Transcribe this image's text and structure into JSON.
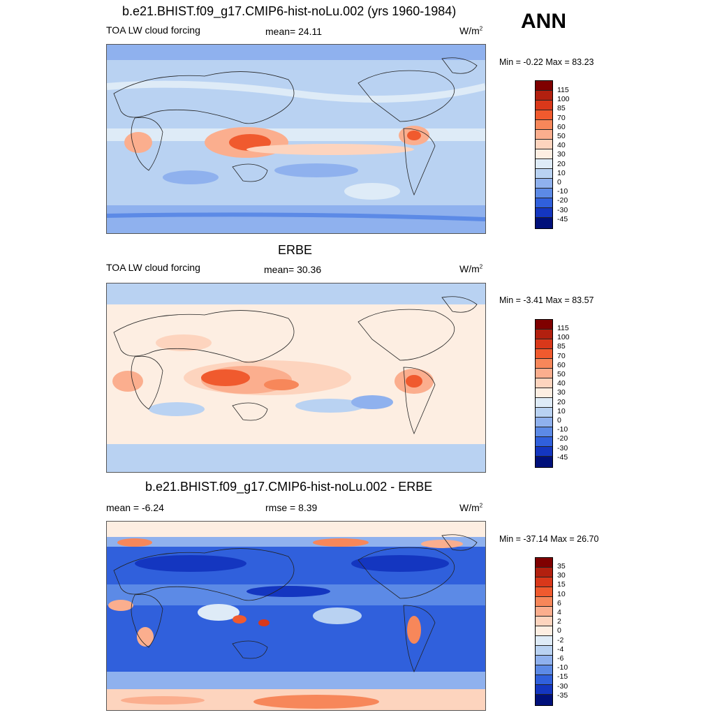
{
  "season": "ANN",
  "units_base": "W/m",
  "units_sup": "2",
  "panels": [
    {
      "title": "b.e21.BHIST.f09_g17.CMIP6-hist-noLu.002 (yrs 1960-1984)",
      "left_label": "TOA LW cloud forcing",
      "center_label": "mean=  24.11",
      "minmax": "Min =  -0.22 Max =  83.23",
      "levels": [
        "115",
        "100",
        "85",
        "70",
        "60",
        "50",
        "40",
        "30",
        "20",
        "10",
        "0",
        "-10",
        "-20",
        "-30",
        "-45"
      ],
      "colors": [
        "#7f0000",
        "#b2200f",
        "#d9381a",
        "#f05a2e",
        "#f7875a",
        "#fbae8e",
        "#fdd4be",
        "#fdeee2",
        "#deebf7",
        "#b9d2f2",
        "#8fb1ee",
        "#5c8ae6",
        "#3060dc",
        "#1436c0",
        "#00107a"
      ]
    },
    {
      "title": "ERBE",
      "left_label": "TOA LW cloud forcing",
      "center_label": "mean=  30.36",
      "minmax": "Min =  -3.41 Max =  83.57",
      "levels": [
        "115",
        "100",
        "85",
        "70",
        "60",
        "50",
        "40",
        "30",
        "20",
        "10",
        "0",
        "-10",
        "-20",
        "-30",
        "-45"
      ],
      "colors": [
        "#7f0000",
        "#b2200f",
        "#d9381a",
        "#f05a2e",
        "#f7875a",
        "#fbae8e",
        "#fdd4be",
        "#fdeee2",
        "#deebf7",
        "#b9d2f2",
        "#8fb1ee",
        "#5c8ae6",
        "#3060dc",
        "#1436c0",
        "#00107a"
      ]
    },
    {
      "title": "b.e21.BHIST.f09_g17.CMIP6-hist-noLu.002 - ERBE",
      "left_label": "mean =  -6.24",
      "center_label": "rmse =   8.39",
      "minmax": "Min = -37.14 Max =  26.70",
      "levels": [
        "35",
        "30",
        "15",
        "10",
        "6",
        "4",
        "2",
        "0",
        "-2",
        "-4",
        "-6",
        "-10",
        "-15",
        "-30",
        "-35"
      ],
      "colors": [
        "#7f0000",
        "#b2200f",
        "#d9381a",
        "#f05a2e",
        "#f7875a",
        "#fbae8e",
        "#fdd4be",
        "#fdeee2",
        "#deebf7",
        "#b9d2f2",
        "#8fb1ee",
        "#5c8ae6",
        "#3060dc",
        "#1436c0",
        "#00107a"
      ]
    }
  ]
}
